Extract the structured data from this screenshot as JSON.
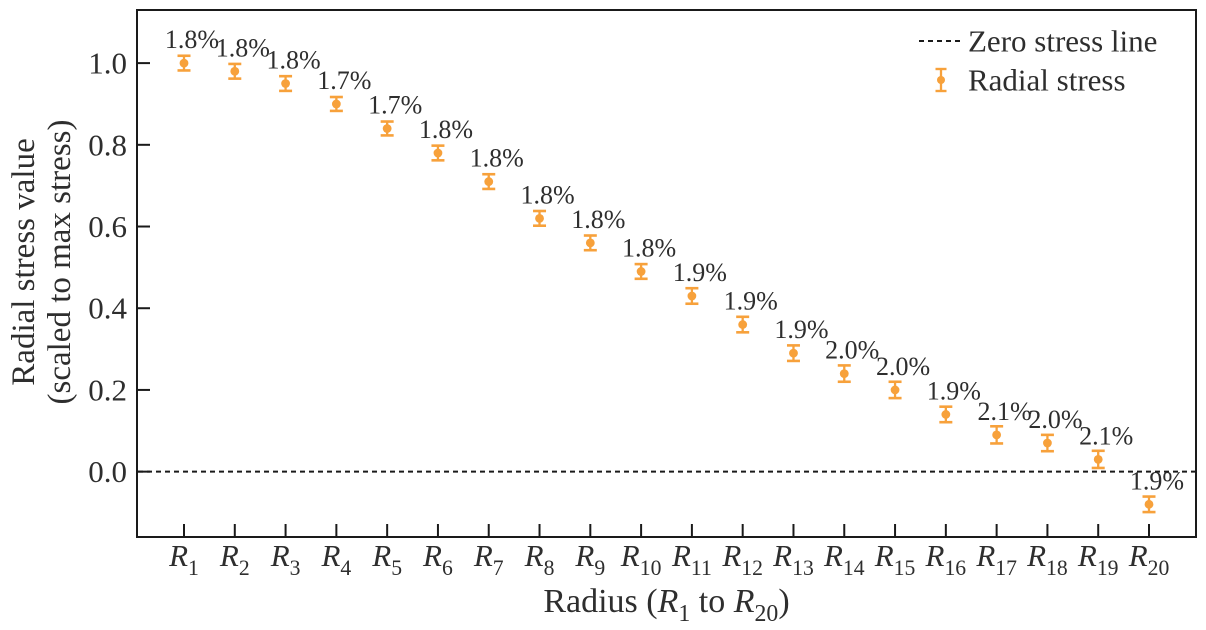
{
  "chart_data": {
    "type": "scatter",
    "title": "",
    "xlabel": "Radius (R_1 to R_20)",
    "ylabel_lines": [
      "Radial stress value",
      "(scaled to max stress)"
    ],
    "categories": [
      "R_1",
      "R_2",
      "R_3",
      "R_4",
      "R_5",
      "R_6",
      "R_7",
      "R_8",
      "R_9",
      "R_10",
      "R_11",
      "R_12",
      "R_13",
      "R_14",
      "R_15",
      "R_16",
      "R_17",
      "R_18",
      "R_19",
      "R_20"
    ],
    "series": [
      {
        "name": "Radial stress",
        "values": [
          1.0,
          0.98,
          0.95,
          0.9,
          0.84,
          0.78,
          0.71,
          0.62,
          0.56,
          0.49,
          0.43,
          0.36,
          0.29,
          0.24,
          0.2,
          0.14,
          0.09,
          0.07,
          0.03,
          -0.08
        ],
        "errors": [
          0.018,
          0.018,
          0.018,
          0.017,
          0.017,
          0.018,
          0.018,
          0.018,
          0.018,
          0.018,
          0.019,
          0.019,
          0.019,
          0.02,
          0.02,
          0.019,
          0.021,
          0.02,
          0.021,
          0.019
        ],
        "point_labels": [
          "1.8%",
          "1.8%",
          "1.8%",
          "1.7%",
          "1.7%",
          "1.8%",
          "1.8%",
          "1.8%",
          "1.8%",
          "1.8%",
          "1.9%",
          "1.9%",
          "1.9%",
          "2.0%",
          "2.0%",
          "1.9%",
          "2.1%",
          "2.0%",
          "2.1%",
          "1.9%"
        ]
      }
    ],
    "yticks": [
      "0.0",
      "0.2",
      "0.4",
      "0.6",
      "0.8",
      "1.0"
    ],
    "ylim": [
      -0.16,
      1.13
    ],
    "grid": false,
    "zero_line": {
      "y": 0.0,
      "style": "dashed"
    },
    "legend": {
      "position": "upper-right",
      "entries": [
        {
          "label": "Zero stress line",
          "glyph": "dashed-line"
        },
        {
          "label": "Radial stress",
          "glyph": "errorbar"
        }
      ]
    },
    "colors": {
      "series": "#F7A13B",
      "axis": "#1a1a1a",
      "text": "#2e2e2e",
      "background": "#ffffff"
    }
  }
}
